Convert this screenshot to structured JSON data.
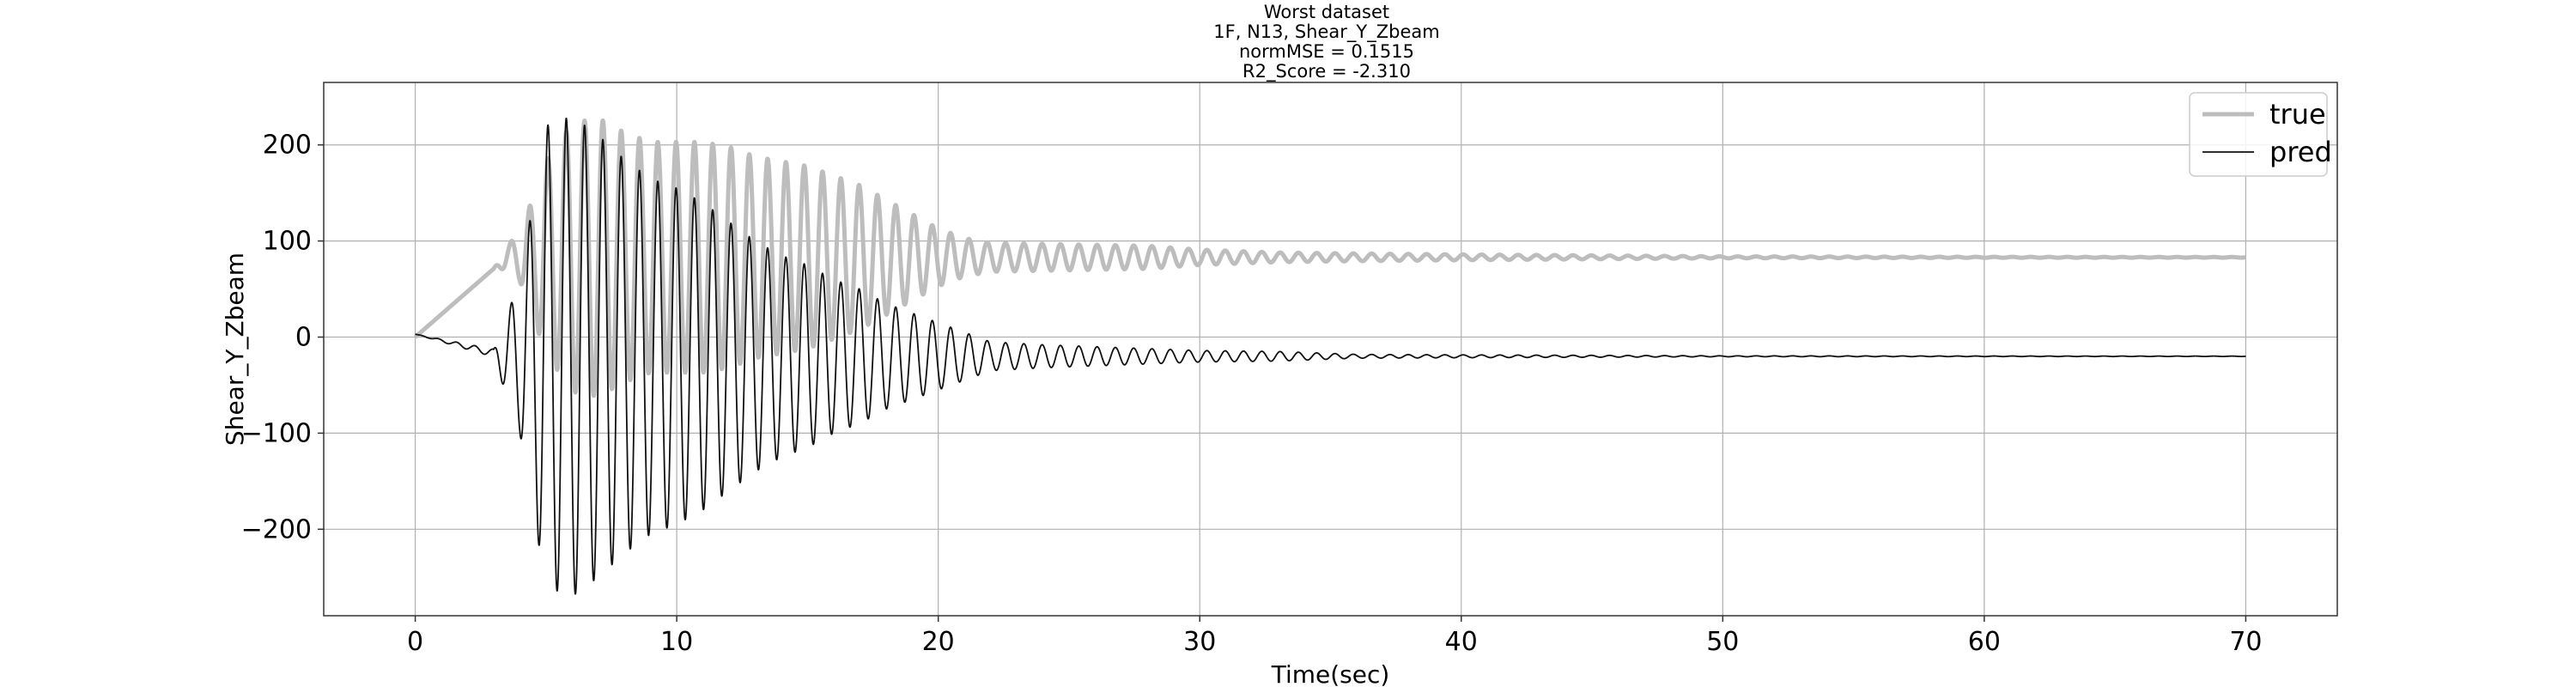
{
  "chart_data": {
    "type": "line",
    "title_lines": [
      "Worst dataset",
      "1F, N13, Shear_Y_Zbeam",
      "normMSE = 0.1515",
      "R2_Score = -2.310"
    ],
    "xlabel": "Time(sec)",
    "ylabel": "Shear_Y_Zbeam",
    "xlim": [
      -3.5,
      73.5
    ],
    "ylim": [
      -290,
      265
    ],
    "xticks": [
      0,
      10,
      20,
      30,
      40,
      50,
      60,
      70
    ],
    "yticks": [
      -200,
      -100,
      0,
      100,
      200
    ],
    "ytick_labels": [
      "−200",
      "−100",
      "0",
      "100",
      "200"
    ],
    "grid": true,
    "legend_position": "top-right",
    "series": [
      {
        "name": "true",
        "color": "#bdbdbd",
        "baseline": 83,
        "start_value": 0,
        "x": [
          0,
          3,
          4,
          5,
          6,
          7,
          8,
          9,
          10,
          11,
          12,
          13,
          14,
          15,
          16,
          17,
          18,
          19,
          20,
          21,
          22,
          24,
          26,
          28,
          30,
          33,
          36,
          40,
          45,
          50,
          60,
          70
        ],
        "amplitude": [
          0,
          0,
          25,
          100,
          140,
          145,
          130,
          120,
          120,
          120,
          115,
          105,
          100,
          95,
          85,
          75,
          60,
          45,
          30,
          20,
          15,
          14,
          13,
          12,
          8,
          5,
          4,
          3,
          2,
          1,
          0.5,
          0.3
        ],
        "period": 0.7,
        "phase": 0
      },
      {
        "name": "pred",
        "color": "#111111",
        "baseline": -20,
        "start_value": 3,
        "x": [
          0,
          3,
          4,
          5,
          6,
          7,
          8,
          9,
          10,
          11,
          12,
          13,
          14,
          15,
          16,
          17,
          18,
          19,
          20,
          21,
          22,
          24,
          26,
          28,
          30,
          33,
          36,
          40,
          45,
          50,
          60,
          70
        ],
        "amplitude": [
          0,
          4,
          80,
          240,
          250,
          230,
          205,
          185,
          175,
          160,
          140,
          120,
          105,
          95,
          80,
          70,
          55,
          45,
          35,
          25,
          15,
          12,
          10,
          8,
          6,
          5,
          2,
          1.5,
          1,
          0.5,
          0.3,
          0.2
        ],
        "period": 0.7,
        "phase": 0
      }
    ]
  }
}
